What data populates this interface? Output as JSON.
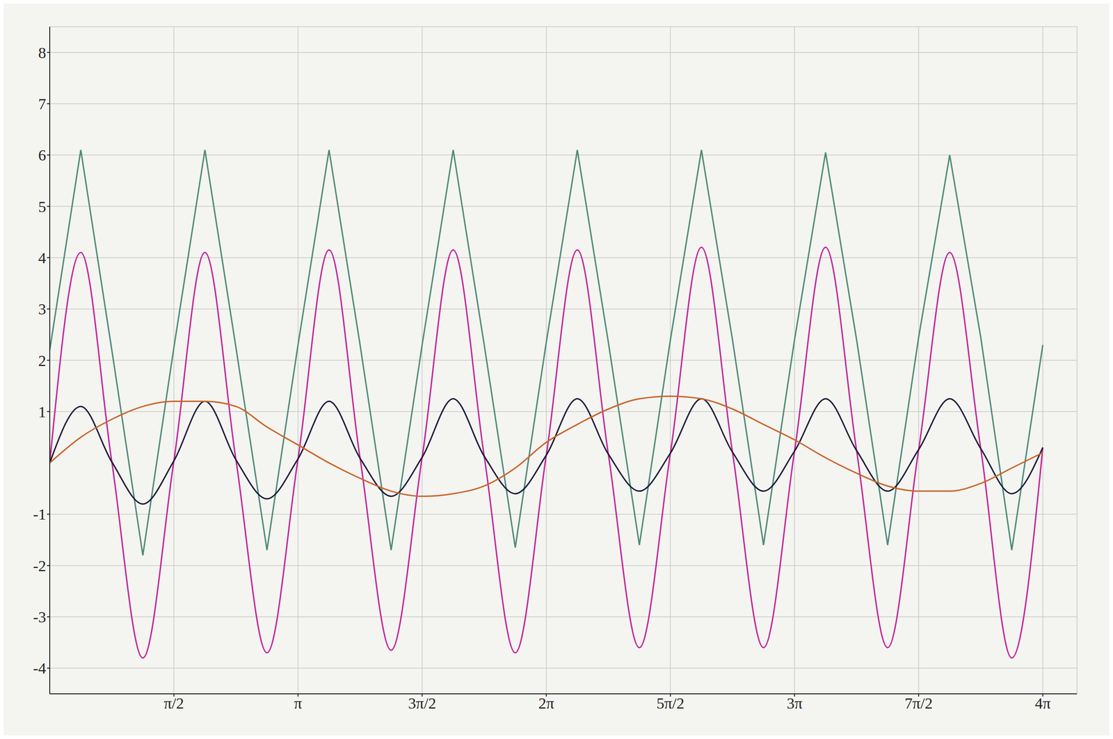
{
  "chart_data": {
    "type": "line",
    "x": [
      0,
      0.3927,
      0.7854,
      1.1781,
      1.5708,
      1.9635,
      2.3562,
      2.7489,
      3.1416,
      3.5343,
      3.927,
      4.3197,
      4.7124,
      5.1051,
      5.4978,
      5.8905,
      6.2832,
      6.6759,
      7.0686,
      7.4613,
      7.854,
      8.2467,
      8.6394,
      9.0321,
      9.4248,
      9.8175,
      10.2102,
      10.6029,
      10.9956,
      11.3883,
      11.781,
      12.1737,
      12.5664
    ],
    "series": [
      {
        "color": "#4f8a78",
        "values": [
          2.2,
          6.1,
          2.2,
          -1.8,
          2.25,
          6.1,
          2.25,
          -1.7,
          2.3,
          6.1,
          2.3,
          -1.7,
          2.3,
          6.1,
          2.3,
          -1.65,
          2.35,
          6.1,
          2.35,
          -1.6,
          2.4,
          6.1,
          2.4,
          -1.6,
          2.4,
          6.05,
          2.4,
          -1.6,
          2.45,
          6.0,
          2.45,
          -1.7,
          2.3
        ]
      },
      {
        "color": "#c2269a",
        "values": [
          0,
          4.1,
          0.02,
          -3.8,
          0.04,
          4.1,
          0.06,
          -3.7,
          0.08,
          4.15,
          0.09,
          -3.65,
          0.11,
          4.15,
          0.13,
          -3.7,
          0.15,
          4.15,
          0.17,
          -3.6,
          0.19,
          4.2,
          0.21,
          -3.6,
          0.23,
          4.2,
          0.24,
          -3.6,
          0.26,
          4.1,
          0.28,
          -3.8,
          0.3
        ]
      },
      {
        "color": "#1c1b3a",
        "values": [
          0,
          1.1,
          0.02,
          -0.8,
          0.04,
          1.2,
          0.06,
          -0.7,
          0.08,
          1.2,
          0.09,
          -0.65,
          0.11,
          1.25,
          0.13,
          -0.6,
          0.15,
          1.25,
          0.17,
          -0.55,
          0.19,
          1.25,
          0.21,
          -0.55,
          0.23,
          1.25,
          0.24,
          -0.55,
          0.26,
          1.25,
          0.28,
          -0.6,
          0.3
        ]
      },
      {
        "color": "#c8662a",
        "values": [
          0,
          0.5,
          0.85,
          1.1,
          1.2,
          1.2,
          1.1,
          0.7,
          0.35,
          0,
          -0.3,
          -0.55,
          -0.65,
          -0.6,
          -0.45,
          -0.1,
          0.4,
          0.75,
          1.05,
          1.25,
          1.3,
          1.25,
          1.05,
          0.75,
          0.45,
          0.1,
          -0.2,
          -0.45,
          -0.55,
          -0.55,
          -0.4,
          -0.1,
          0.2
        ]
      }
    ],
    "xlim": [
      0,
      13
    ],
    "xticks": [
      {
        "value": 1.5708,
        "label": "π/2"
      },
      {
        "value": 3.1416,
        "label": "π"
      },
      {
        "value": 4.7124,
        "label": "3π/2"
      },
      {
        "value": 6.2832,
        "label": "2π"
      },
      {
        "value": 7.854,
        "label": "5π/2"
      },
      {
        "value": 9.4248,
        "label": "3π"
      },
      {
        "value": 10.9956,
        "label": "7π/2"
      },
      {
        "value": 12.5664,
        "label": "4π"
      }
    ],
    "ylim": [
      -4.5,
      8.5
    ],
    "yticks": [
      -4,
      -3,
      -2,
      -1,
      1,
      2,
      3,
      4,
      5,
      6,
      7,
      8
    ],
    "grid": true
  }
}
